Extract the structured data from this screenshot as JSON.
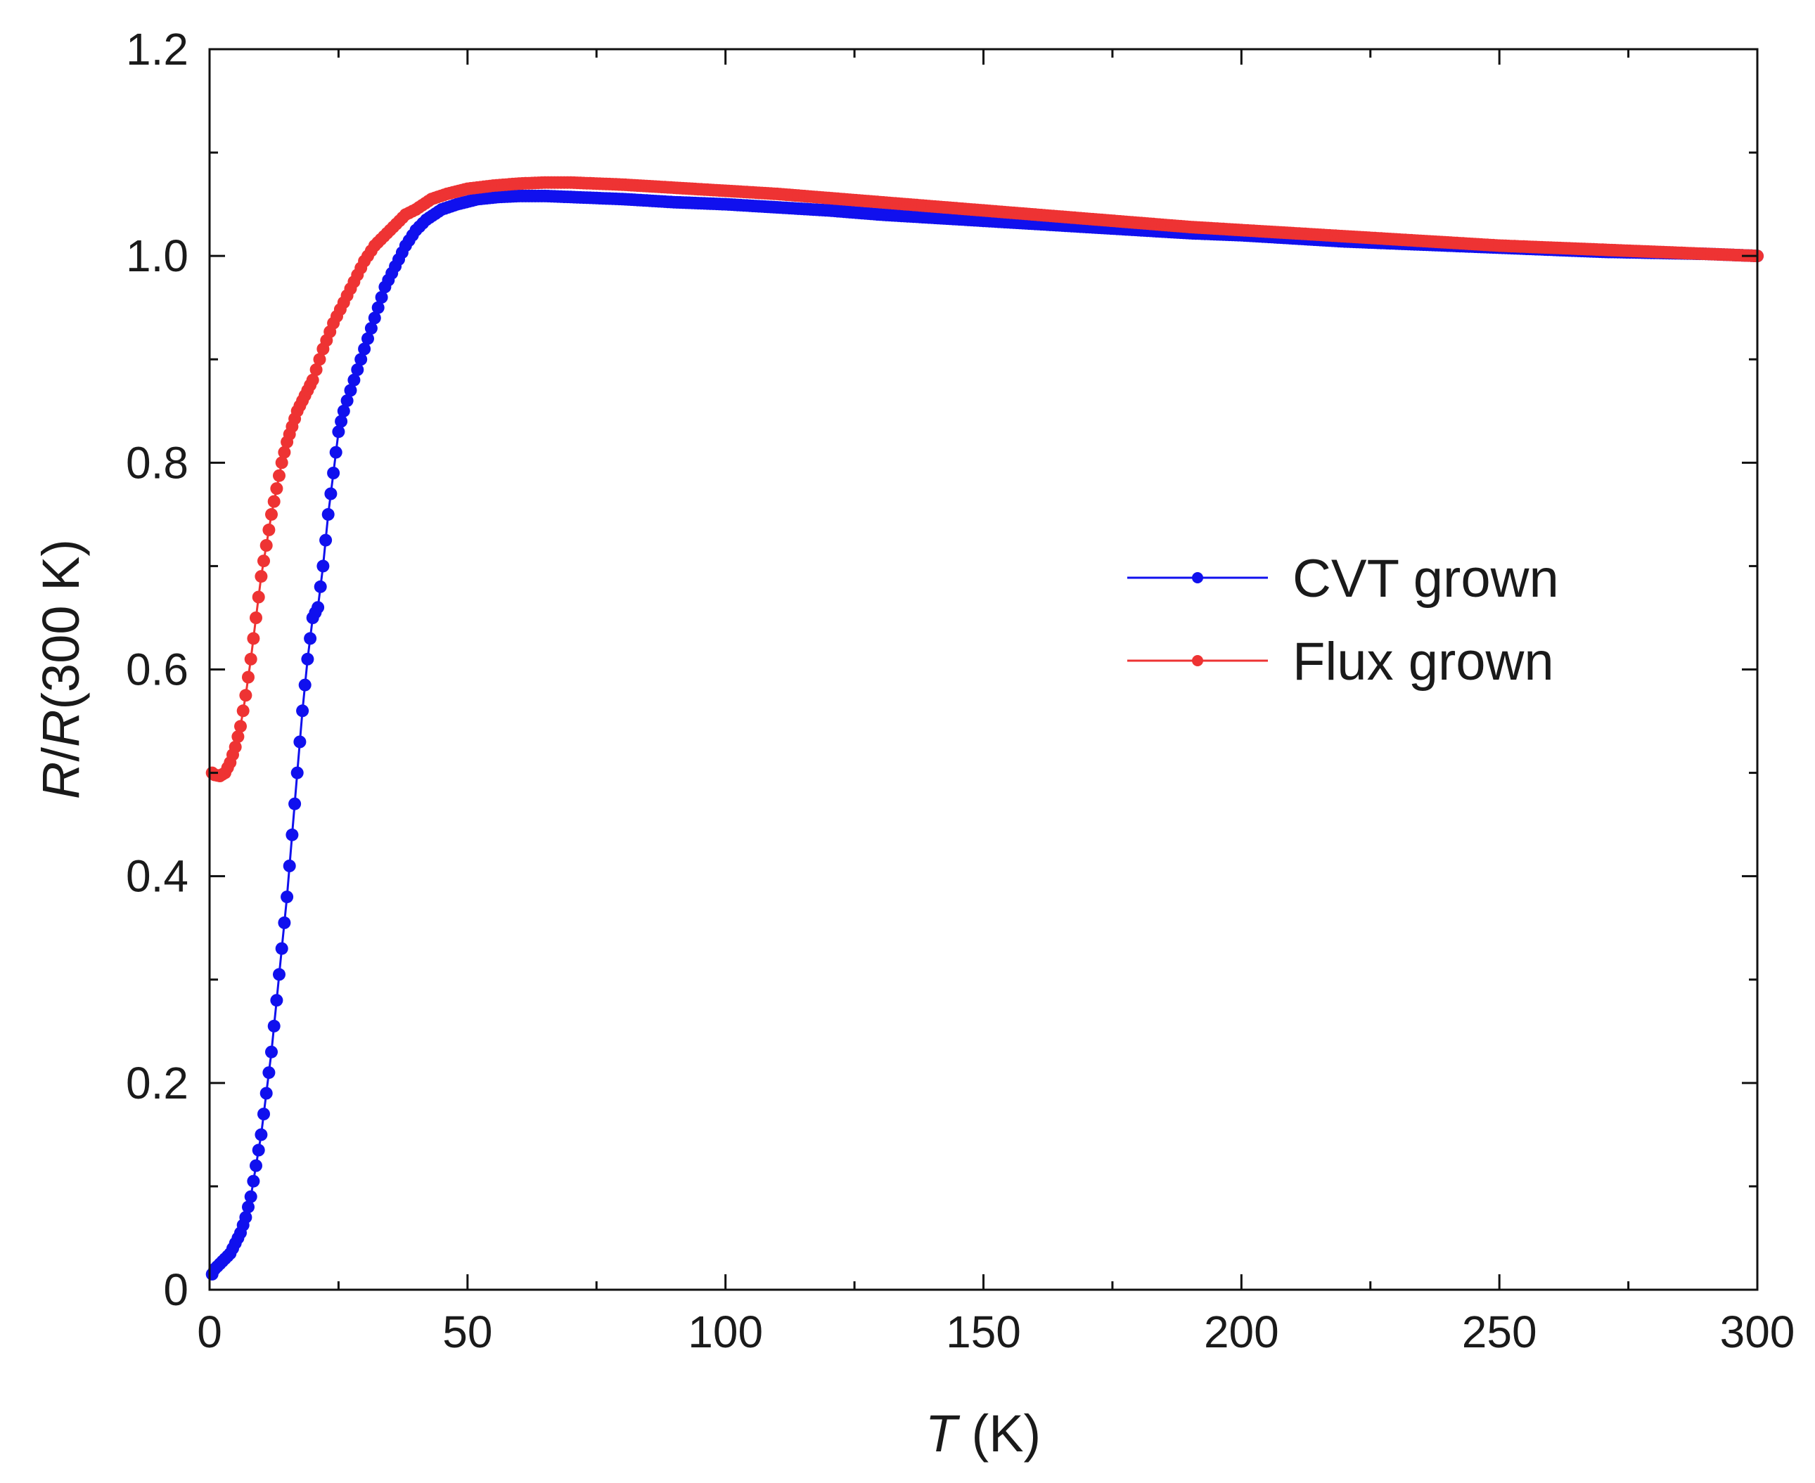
{
  "chart_data": {
    "type": "line",
    "title": "",
    "xlabel": {
      "symbol": "T",
      "unit": " (K)"
    },
    "ylabel": {
      "num": "R",
      "slash": "/",
      "den": "R",
      "rest": "(300 K)"
    },
    "xlim": [
      0,
      300
    ],
    "ylim": [
      0,
      1.2
    ],
    "xticks": [
      0,
      50,
      100,
      150,
      200,
      250,
      300
    ],
    "xtick_labels": [
      "0",
      "50",
      "100",
      "150",
      "200",
      "250",
      "300"
    ],
    "yticks": [
      0,
      0.2,
      0.4,
      0.6,
      0.8,
      1.0,
      1.2
    ],
    "ytick_labels": [
      "0",
      "0.2",
      "0.4",
      "0.6",
      "0.8",
      "1.0",
      "1.2"
    ],
    "grid": false,
    "legend_position": "center-right",
    "series": [
      {
        "name": "CVT grown",
        "color": "#1010ee",
        "marker": "circle",
        "x": [
          0.5,
          1,
          2,
          3,
          4,
          5,
          6,
          7,
          8,
          9,
          10,
          11,
          12,
          13,
          14,
          15,
          16,
          17,
          18,
          19,
          20,
          21,
          22,
          23,
          24,
          25,
          26,
          28,
          30,
          32,
          34,
          36,
          38,
          40,
          42,
          45,
          48,
          52,
          56,
          60,
          65,
          70,
          75,
          80,
          90,
          100,
          110,
          120,
          130,
          140,
          150,
          160,
          170,
          180,
          190,
          200,
          210,
          220,
          230,
          240,
          250,
          260,
          270,
          280,
          290,
          300
        ],
        "y": [
          0.015,
          0.02,
          0.025,
          0.03,
          0.035,
          0.045,
          0.055,
          0.07,
          0.09,
          0.12,
          0.15,
          0.19,
          0.23,
          0.28,
          0.33,
          0.38,
          0.44,
          0.5,
          0.56,
          0.61,
          0.65,
          0.66,
          0.7,
          0.75,
          0.79,
          0.83,
          0.85,
          0.88,
          0.91,
          0.94,
          0.97,
          0.99,
          1.01,
          1.025,
          1.035,
          1.045,
          1.05,
          1.055,
          1.057,
          1.058,
          1.058,
          1.057,
          1.056,
          1.055,
          1.052,
          1.05,
          1.047,
          1.044,
          1.04,
          1.037,
          1.034,
          1.031,
          1.028,
          1.025,
          1.022,
          1.02,
          1.017,
          1.014,
          1.012,
          1.01,
          1.008,
          1.006,
          1.004,
          1.003,
          1.002,
          1.0
        ]
      },
      {
        "name": "Flux grown",
        "color": "#ee3333",
        "marker": "circle",
        "x": [
          0.5,
          1,
          2,
          3,
          4,
          5,
          6,
          7,
          8,
          9,
          10,
          11,
          12,
          13,
          14,
          15,
          16,
          17,
          18,
          19,
          20,
          22,
          24,
          26,
          28,
          30,
          32,
          35,
          38,
          40,
          43,
          46,
          50,
          55,
          60,
          65,
          70,
          75,
          80,
          90,
          100,
          110,
          120,
          130,
          140,
          150,
          160,
          170,
          180,
          190,
          200,
          210,
          220,
          230,
          240,
          250,
          260,
          270,
          280,
          290,
          300
        ],
        "y": [
          0.5,
          0.498,
          0.497,
          0.5,
          0.51,
          0.525,
          0.545,
          0.575,
          0.61,
          0.65,
          0.69,
          0.72,
          0.75,
          0.775,
          0.8,
          0.82,
          0.835,
          0.85,
          0.86,
          0.87,
          0.88,
          0.91,
          0.935,
          0.955,
          0.975,
          0.995,
          1.01,
          1.025,
          1.04,
          1.045,
          1.055,
          1.06,
          1.065,
          1.068,
          1.07,
          1.071,
          1.071,
          1.07,
          1.069,
          1.066,
          1.063,
          1.06,
          1.056,
          1.052,
          1.048,
          1.044,
          1.04,
          1.036,
          1.032,
          1.028,
          1.025,
          1.022,
          1.019,
          1.016,
          1.013,
          1.01,
          1.008,
          1.006,
          1.004,
          1.002,
          1.0
        ]
      }
    ]
  }
}
